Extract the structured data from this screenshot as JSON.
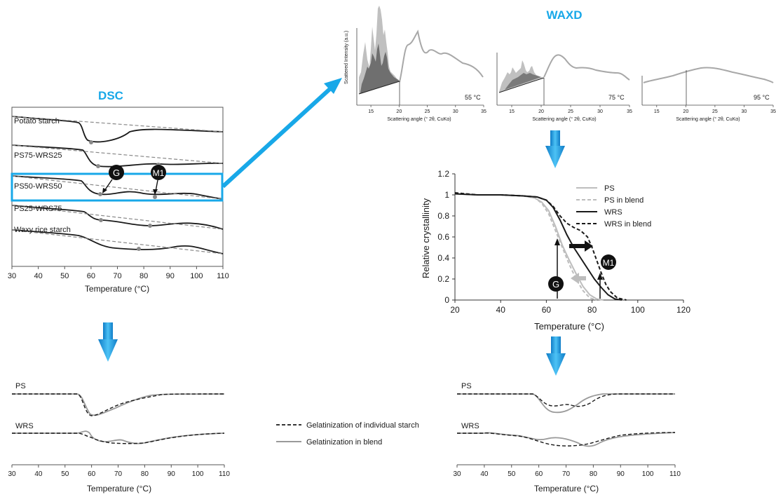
{
  "colors": {
    "accent": "#18a8e8",
    "dark": "#1a1a1a",
    "grey": "#9a9a9a",
    "light_grey": "#bdbdbd"
  },
  "dsc": {
    "title": "DSC",
    "samples": [
      "Potato starch",
      "PS75-WRS25",
      "PS50-WRS50",
      "PS25-WRS75",
      "Waxy rice starch"
    ],
    "markers": [
      "G",
      "M1"
    ],
    "xlabel": "Temperature (°C)",
    "ticks": [
      "30",
      "40",
      "50",
      "60",
      "70",
      "80",
      "90",
      "100",
      "110"
    ]
  },
  "waxd": {
    "title": "WAXD",
    "ylabel": "Scattered Intensity (a.u.)",
    "panels": [
      {
        "temp": "55 °C",
        "xlabel": "Scattering angle (° 2θ, CuKα)"
      },
      {
        "temp": "75 °C",
        "xlabel": "Scattering angle (° 2θ, CuKα)"
      },
      {
        "temp": "95 °C",
        "xlabel": "Scattering angle (° 2θ, CuKα)"
      }
    ],
    "ticks": [
      "15",
      "20",
      "25",
      "30",
      "35"
    ]
  },
  "chart_data": {
    "type": "line",
    "title": "",
    "xlabel": "Temperature (°C)",
    "ylabel": "Relative crystallinity",
    "xlim": [
      20,
      120
    ],
    "ylim": [
      0,
      1.2
    ],
    "x_ticks": [
      "20",
      "40",
      "60",
      "80",
      "100",
      "120"
    ],
    "y_ticks": [
      "0",
      "0.2",
      "0.4",
      "0.6",
      "0.8",
      "1",
      "1.2"
    ],
    "legend": "top-right",
    "series": [
      {
        "name": "PS",
        "style": "solid",
        "color": "#bdbdbd",
        "points": [
          [
            20,
            1.01
          ],
          [
            30,
            1.0
          ],
          [
            40,
            1.0
          ],
          [
            50,
            0.99
          ],
          [
            55,
            0.97
          ],
          [
            58,
            0.93
          ],
          [
            61,
            0.85
          ],
          [
            64,
            0.7
          ],
          [
            67,
            0.52
          ],
          [
            70,
            0.38
          ],
          [
            73,
            0.25
          ],
          [
            76,
            0.13
          ],
          [
            79,
            0.05
          ],
          [
            82,
            0.01
          ],
          [
            85,
            0.0
          ]
        ]
      },
      {
        "name": "PS in blend",
        "style": "dashed",
        "color": "#bdbdbd",
        "points": [
          [
            20,
            1.01
          ],
          [
            30,
            1.0
          ],
          [
            40,
            1.0
          ],
          [
            50,
            0.99
          ],
          [
            55,
            0.97
          ],
          [
            58,
            0.92
          ],
          [
            61,
            0.82
          ],
          [
            64,
            0.66
          ],
          [
            67,
            0.5
          ],
          [
            70,
            0.34
          ],
          [
            73,
            0.2
          ],
          [
            76,
            0.09
          ],
          [
            79,
            0.02
          ],
          [
            82,
            0.0
          ]
        ]
      },
      {
        "name": "WRS",
        "style": "solid",
        "color": "#1a1a1a",
        "points": [
          [
            20,
            1.01
          ],
          [
            30,
            1.0
          ],
          [
            40,
            1.0
          ],
          [
            50,
            0.99
          ],
          [
            56,
            0.98
          ],
          [
            60,
            0.95
          ],
          [
            63,
            0.88
          ],
          [
            66,
            0.76
          ],
          [
            69,
            0.62
          ],
          [
            72,
            0.5
          ],
          [
            75,
            0.4
          ],
          [
            78,
            0.3
          ],
          [
            81,
            0.2
          ],
          [
            84,
            0.12
          ],
          [
            87,
            0.05
          ],
          [
            90,
            0.01
          ],
          [
            93,
            0.0
          ]
        ]
      },
      {
        "name": "WRS in blend",
        "style": "dashed",
        "color": "#1a1a1a",
        "points": [
          [
            20,
            1.02
          ],
          [
            30,
            1.0
          ],
          [
            40,
            1.0
          ],
          [
            50,
            0.99
          ],
          [
            56,
            0.98
          ],
          [
            60,
            0.95
          ],
          [
            63,
            0.89
          ],
          [
            66,
            0.8
          ],
          [
            69,
            0.73
          ],
          [
            72,
            0.69
          ],
          [
            75,
            0.66
          ],
          [
            78,
            0.6
          ],
          [
            80,
            0.5
          ],
          [
            82,
            0.38
          ],
          [
            84,
            0.26
          ],
          [
            86,
            0.15
          ],
          [
            88,
            0.08
          ],
          [
            91,
            0.02
          ],
          [
            95,
            0.0
          ]
        ]
      }
    ],
    "annotations": [
      "G",
      "M1"
    ]
  },
  "bottom_left": {
    "rows": [
      "PS",
      "WRS"
    ],
    "xlabel": "Temperature (°C)",
    "ticks": [
      "30",
      "40",
      "50",
      "60",
      "70",
      "80",
      "90",
      "100",
      "110"
    ]
  },
  "bottom_right": {
    "rows": [
      "PS",
      "WRS"
    ],
    "xlabel": "Temperature (°C)",
    "ticks": [
      "30",
      "40",
      "50",
      "60",
      "70",
      "80",
      "90",
      "100",
      "110"
    ]
  },
  "legend_bottom": {
    "individual": "Gelatinization of individual starch",
    "blend": "Gelatinization in blend"
  }
}
